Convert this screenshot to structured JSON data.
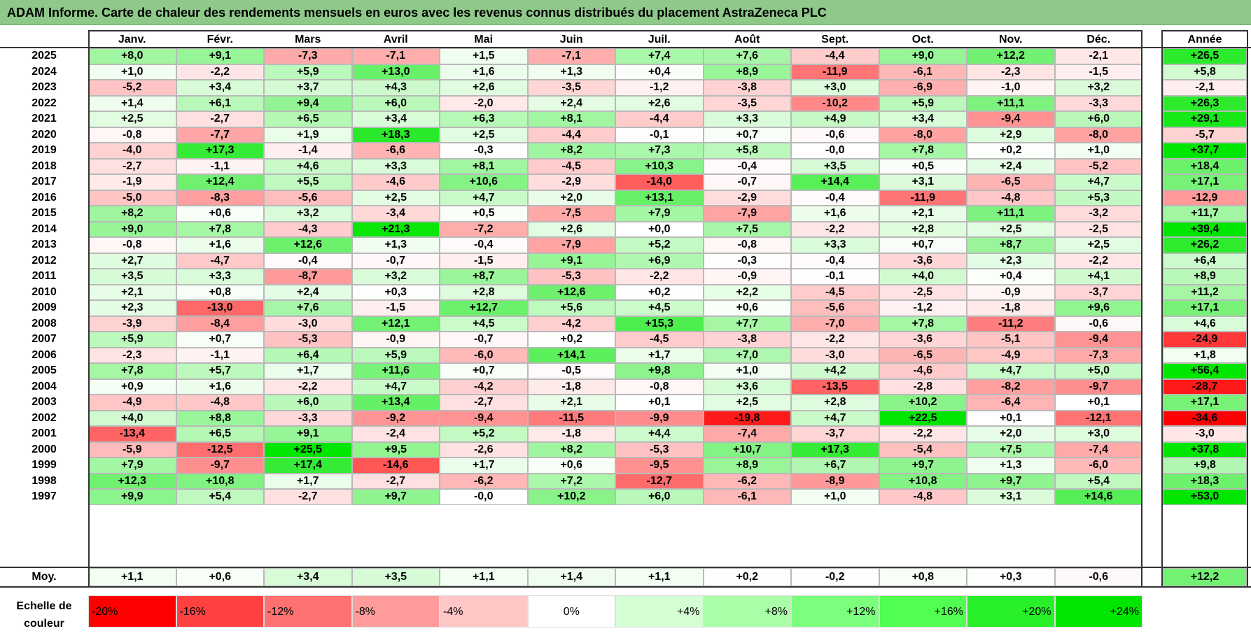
{
  "title": "ADAM Informe. Carte de chaleur des rendements mensuels en euros avec les revenus connus distribués du placement AstraZeneca PLC",
  "chart_data": {
    "type": "heatmap",
    "title": "ADAM Informe. Carte de chaleur des rendements mensuels en euros avec les revenus connus distribués du placement AstraZeneca PLC",
    "months": [
      "Janv.",
      "Févr.",
      "Mars",
      "Avril",
      "Mai",
      "Juin",
      "Juil.",
      "Août",
      "Sept.",
      "Oct.",
      "Nov.",
      "Déc."
    ],
    "annual_label": "Année",
    "rows": [
      {
        "year": "2025",
        "values": [
          "+8,0",
          "+9,1",
          "-7,3",
          "-7,1",
          "+1,5",
          "-7,1",
          "+7,4",
          "+7,6",
          "-4,4",
          "+9,0",
          "+12,2",
          "-2,1"
        ],
        "annual": "+26,5"
      },
      {
        "year": "2024",
        "values": [
          "+1,0",
          "-2,2",
          "+5,9",
          "+13,0",
          "+1,6",
          "+1,3",
          "+0,4",
          "+8,9",
          "-11,9",
          "-6,1",
          "-2,3",
          "-1,5"
        ],
        "annual": "+5,8"
      },
      {
        "year": "2023",
        "values": [
          "-5,2",
          "+3,4",
          "+3,7",
          "+4,3",
          "+2,6",
          "-3,5",
          "-1,2",
          "-3,8",
          "+3,0",
          "-6,9",
          "-1,0",
          "+3,2"
        ],
        "annual": "-2,1"
      },
      {
        "year": "2022",
        "values": [
          "+1,4",
          "+6,1",
          "+9,4",
          "+6,0",
          "-2,0",
          "+2,4",
          "+2,6",
          "-3,5",
          "-10,2",
          "+5,9",
          "+11,1",
          "-3,3"
        ],
        "annual": "+26,3"
      },
      {
        "year": "2021",
        "values": [
          "+2,5",
          "-2,7",
          "+6,5",
          "+3,4",
          "+6,3",
          "+8,1",
          "-4,4",
          "+3,3",
          "+4,9",
          "+3,4",
          "-9,4",
          "+6,0"
        ],
        "annual": "+29,1"
      },
      {
        "year": "2020",
        "values": [
          "-0,8",
          "-7,7",
          "+1,9",
          "+18,3",
          "+2,5",
          "-4,4",
          "-0,1",
          "+0,7",
          "-0,6",
          "-8,0",
          "+2,9",
          "-8,0"
        ],
        "annual": "-5,7"
      },
      {
        "year": "2019",
        "values": [
          "-4,0",
          "+17,3",
          "-1,4",
          "-6,6",
          "-0,3",
          "+8,2",
          "+7,3",
          "+5,8",
          "-0,0",
          "+7,8",
          "+0,2",
          "+1,0"
        ],
        "annual": "+37,7"
      },
      {
        "year": "2018",
        "values": [
          "-2,7",
          "-1,1",
          "+4,6",
          "+3,3",
          "+8,1",
          "-4,5",
          "+10,3",
          "-0,4",
          "+3,5",
          "+0,5",
          "+2,4",
          "-5,2"
        ],
        "annual": "+18,4"
      },
      {
        "year": "2017",
        "values": [
          "-1,9",
          "+12,4",
          "+5,5",
          "-4,6",
          "+10,6",
          "-2,9",
          "-14,0",
          "-0,7",
          "+14,4",
          "+3,1",
          "-6,5",
          "+4,7"
        ],
        "annual": "+17,1"
      },
      {
        "year": "2016",
        "values": [
          "-5,0",
          "-8,3",
          "-5,6",
          "+2,5",
          "+4,7",
          "+2,0",
          "+13,1",
          "-2,9",
          "-0,4",
          "-11,9",
          "-4,8",
          "+5,3"
        ],
        "annual": "-12,9"
      },
      {
        "year": "2015",
        "values": [
          "+8,2",
          "+0,6",
          "+3,2",
          "-3,4",
          "+0,5",
          "-7,5",
          "+7,9",
          "-7,9",
          "+1,6",
          "+2,1",
          "+11,1",
          "-3,2"
        ],
        "annual": "+11,7"
      },
      {
        "year": "2014",
        "values": [
          "+9,0",
          "+7,8",
          "-4,3",
          "+21,3",
          "-7,2",
          "+2,6",
          "+0,0",
          "+7,5",
          "-2,2",
          "+2,8",
          "+2,5",
          "-2,5"
        ],
        "annual": "+39,4"
      },
      {
        "year": "2013",
        "values": [
          "-0,8",
          "+1,6",
          "+12,6",
          "+1,3",
          "-0,4",
          "-7,9",
          "+5,2",
          "-0,8",
          "+3,3",
          "+0,7",
          "+8,7",
          "+2,5"
        ],
        "annual": "+26,2"
      },
      {
        "year": "2012",
        "values": [
          "+2,7",
          "-4,7",
          "-0,4",
          "-0,7",
          "-1,5",
          "+9,1",
          "+6,9",
          "-0,3",
          "-0,4",
          "-3,6",
          "+2,3",
          "-2,2"
        ],
        "annual": "+6,4"
      },
      {
        "year": "2011",
        "values": [
          "+3,5",
          "+3,3",
          "-8,7",
          "+3,2",
          "+8,7",
          "-5,3",
          "-2,2",
          "-0,9",
          "-0,1",
          "+4,0",
          "+0,4",
          "+4,1"
        ],
        "annual": "+8,9"
      },
      {
        "year": "2010",
        "values": [
          "+2,1",
          "+0,8",
          "+2,4",
          "+0,3",
          "+2,8",
          "+12,6",
          "+0,2",
          "+2,2",
          "-4,5",
          "-2,5",
          "-0,9",
          "-3,7"
        ],
        "annual": "+11,2"
      },
      {
        "year": "2009",
        "values": [
          "+2,3",
          "-13,0",
          "+7,6",
          "-1,5",
          "+12,7",
          "+5,6",
          "+4,5",
          "+0,6",
          "-5,6",
          "-1,2",
          "-1,8",
          "+9,6"
        ],
        "annual": "+17,1"
      },
      {
        "year": "2008",
        "values": [
          "-3,9",
          "-8,4",
          "-3,0",
          "+12,1",
          "+4,5",
          "-4,2",
          "+15,3",
          "+7,7",
          "-7,0",
          "+7,8",
          "-11,2",
          "-0,6"
        ],
        "annual": "+4,6"
      },
      {
        "year": "2007",
        "values": [
          "+5,9",
          "+0,7",
          "-5,3",
          "-0,9",
          "-0,7",
          "+0,2",
          "-4,5",
          "-3,8",
          "-2,2",
          "-3,6",
          "-5,1",
          "-9,4"
        ],
        "annual": "-24,9"
      },
      {
        "year": "2006",
        "values": [
          "-2,3",
          "-1,1",
          "+6,4",
          "+5,9",
          "-6,0",
          "+14,1",
          "+1,7",
          "+7,0",
          "-3,0",
          "-6,5",
          "-4,9",
          "-7,3"
        ],
        "annual": "+1,8"
      },
      {
        "year": "2005",
        "values": [
          "+7,8",
          "+5,7",
          "+1,7",
          "+11,6",
          "+0,7",
          "-0,5",
          "+9,8",
          "+1,0",
          "+4,2",
          "-4,6",
          "+4,7",
          "+5,0"
        ],
        "annual": "+56,4"
      },
      {
        "year": "2004",
        "values": [
          "+0,9",
          "+1,6",
          "-2,2",
          "+4,7",
          "-4,2",
          "-1,8",
          "-0,8",
          "+3,6",
          "-13,5",
          "-2,8",
          "-8,2",
          "-9,7"
        ],
        "annual": "-28,7"
      },
      {
        "year": "2003",
        "values": [
          "-4,9",
          "-4,8",
          "+6,0",
          "+13,4",
          "-2,7",
          "+2,1",
          "+0,1",
          "+2,5",
          "+2,8",
          "+10,2",
          "-6,4",
          "+0,1"
        ],
        "annual": "+17,1"
      },
      {
        "year": "2002",
        "values": [
          "+4,0",
          "+8,8",
          "-3,3",
          "-9,2",
          "-9,4",
          "-11,5",
          "-9,9",
          "-19,8",
          "+4,7",
          "+22,5",
          "+0,1",
          "-12,1"
        ],
        "annual": "-34,6"
      },
      {
        "year": "2001",
        "values": [
          "-13,4",
          "+6,5",
          "+9,1",
          "-2,4",
          "+5,2",
          "-1,8",
          "+4,4",
          "-7,4",
          "-3,7",
          "-2,2",
          "+2,0",
          "+3,0"
        ],
        "annual": "-3,0"
      },
      {
        "year": "2000",
        "values": [
          "-5,9",
          "-12,5",
          "+25,5",
          "+9,5",
          "-2,6",
          "+8,2",
          "-5,3",
          "+10,7",
          "+17,3",
          "-5,4",
          "+7,5",
          "-7,4"
        ],
        "annual": "+37,8"
      },
      {
        "year": "1999",
        "values": [
          "+7,9",
          "-9,7",
          "+17,4",
          "-14,6",
          "+1,7",
          "+0,6",
          "-9,5",
          "+8,9",
          "+6,7",
          "+9,7",
          "+1,3",
          "-6,0"
        ],
        "annual": "+9,8"
      },
      {
        "year": "1998",
        "values": [
          "+12,3",
          "+10,8",
          "+1,7",
          "-2,7",
          "-6,2",
          "+7,2",
          "-12,7",
          "-6,2",
          "-8,9",
          "+10,8",
          "+9,7",
          "+5,4"
        ],
        "annual": "+18,3"
      },
      {
        "year": "1997",
        "values": [
          "+9,9",
          "+5,4",
          "-2,7",
          "+9,7",
          "-0,0",
          "+10,2",
          "+6,0",
          "-6,1",
          "+1,0",
          "-4,8",
          "+3,1",
          "+14,6"
        ],
        "annual": "+53,0"
      }
    ],
    "average": {
      "label": "Moy.",
      "values": [
        "+1,1",
        "+0,6",
        "+3,4",
        "+3,5",
        "+1,1",
        "+1,4",
        "+1,1",
        "+0,2",
        "-0,2",
        "+0,8",
        "+0,3",
        "-0,6"
      ],
      "annual": "+12,2"
    },
    "scale": {
      "label_line1": "Echelle de",
      "label_line2": "couleur",
      "steps": [
        {
          "label": "-20%",
          "value": -20,
          "color": "#ff0000"
        },
        {
          "label": "-16%",
          "value": -16,
          "color": "#ff4141"
        },
        {
          "label": "-12%",
          "value": -12,
          "color": "#ff7070"
        },
        {
          "label": "-8%",
          "value": -8,
          "color": "#ff9b9b"
        },
        {
          "label": "-4%",
          "value": -4,
          "color": "#ffc6c6"
        },
        {
          "label": "0%",
          "value": 0,
          "color": "#ffffff"
        },
        {
          "label": "+4%",
          "value": 4,
          "color": "#d4ffd4"
        },
        {
          "label": "+8%",
          "value": 8,
          "color": "#a8ffa8"
        },
        {
          "label": "+12%",
          "value": 12,
          "color": "#7cff7c"
        },
        {
          "label": "+16%",
          "value": 16,
          "color": "#50ff50"
        },
        {
          "label": "+20%",
          "value": 20,
          "color": "#28f028"
        },
        {
          "label": "+24%",
          "value": 24,
          "color": "#00e600"
        }
      ]
    }
  }
}
